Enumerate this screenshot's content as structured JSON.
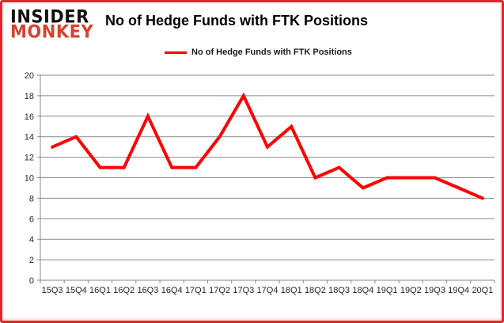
{
  "logo": {
    "line1": "INSIDER",
    "line2": "MONKEY"
  },
  "title": "No of Hedge Funds with FTK Positions",
  "legend": {
    "label": "No of Hedge Funds with FTK Positions"
  },
  "colors": {
    "line": "#ff0000",
    "grid": "#8a8a8a",
    "axis_text": "#262626",
    "border": "#e5252c",
    "logo_black": "#111111",
    "logo_red": "#d5432f"
  },
  "chart_data": {
    "type": "line",
    "title": "No of Hedge Funds with FTK Positions",
    "series": [
      {
        "name": "No of Hedge Funds with FTK Positions",
        "values": [
          13,
          14,
          11,
          11,
          16,
          11,
          11,
          14,
          18,
          13,
          15,
          10,
          11,
          9,
          10,
          10,
          10,
          9,
          8
        ]
      }
    ],
    "categories": [
      "15Q3",
      "15Q4",
      "16Q1",
      "16Q2",
      "16Q3",
      "16Q4",
      "17Q1",
      "17Q2",
      "17Q3",
      "17Q4",
      "18Q1",
      "18Q2",
      "18Q3",
      "18Q4",
      "19Q1",
      "19Q2",
      "19Q3",
      "19Q4",
      "20Q1"
    ],
    "xlabel": "",
    "ylabel": "",
    "ylim": [
      0,
      20
    ],
    "ytick_step": 2,
    "grid": true,
    "legend_position": "top"
  }
}
